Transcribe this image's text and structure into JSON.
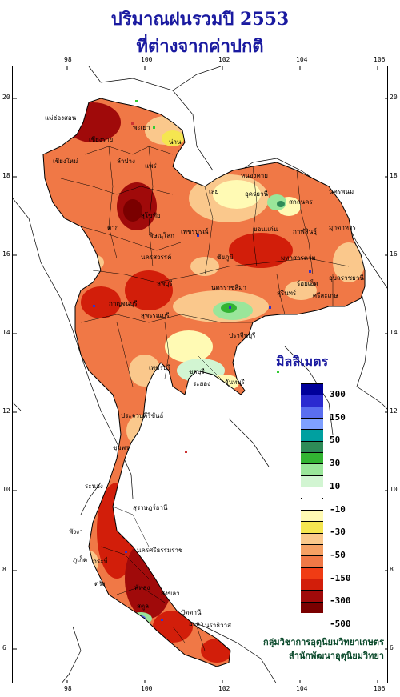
{
  "title": {
    "line1": "ปริมาณฝนรวมปี  2553",
    "line2": "ที่ต่างจากค่าปกติ"
  },
  "axes": {
    "lon_ticks": [
      "98",
      "100",
      "102",
      "104",
      "106"
    ],
    "lat_ticks": [
      "20",
      "18",
      "16",
      "14",
      "12",
      "10",
      "8",
      "6"
    ]
  },
  "legend": {
    "title": "มิลลิเมตร",
    "classes": [
      {
        "label": "300",
        "color": "#00009a"
      },
      {
        "label": "",
        "color": "#2a2ad0"
      },
      {
        "label": "150",
        "color": "#5a6ef0"
      },
      {
        "label": "",
        "color": "#7fa0ff"
      },
      {
        "label": "50",
        "color": "#00a0a0"
      },
      {
        "label": "",
        "color": "#2e8b57"
      },
      {
        "label": "30",
        "color": "#32b432"
      },
      {
        "label": "",
        "color": "#9ae69a"
      },
      {
        "label": "10",
        "color": "#d2f5d2"
      },
      {
        "label": "",
        "color": "#ffffff"
      },
      {
        "label": "-10",
        "color": "#ffffff"
      },
      {
        "label": "",
        "color": "#fffab4"
      },
      {
        "label": "-30",
        "color": "#f5e650"
      },
      {
        "label": "",
        "color": "#fac88c"
      },
      {
        "label": "-50",
        "color": "#f5a064"
      },
      {
        "label": "",
        "color": "#f07846"
      },
      {
        "label": "-150",
        "color": "#f03c14"
      },
      {
        "label": "",
        "color": "#d21e0a"
      },
      {
        "label": "-300",
        "color": "#a00a0a"
      },
      {
        "label": "",
        "color": "#7a0000"
      },
      {
        "label": "-500",
        "color": ""
      }
    ]
  },
  "provinces": [
    {
      "name": "เชียงราย"
    },
    {
      "name": "พะเยา"
    },
    {
      "name": "น่าน"
    },
    {
      "name": "ลำปาง"
    },
    {
      "name": "แพร่"
    },
    {
      "name": "เลย"
    },
    {
      "name": "อุดรธานี"
    },
    {
      "name": "หนองคาย"
    },
    {
      "name": "สกลนคร"
    },
    {
      "name": "นครพนม"
    },
    {
      "name": "มุกดาหาร"
    },
    {
      "name": "ขอนแก่น"
    },
    {
      "name": "กาฬสินธุ์"
    },
    {
      "name": "ตาก"
    },
    {
      "name": "สุโขทัย"
    },
    {
      "name": "พิษณุโลก"
    },
    {
      "name": "เพชรบูรณ์"
    },
    {
      "name": "นครสวรรค์"
    },
    {
      "name": "ชัยภูมิ"
    },
    {
      "name": "มหาสารคาม"
    },
    {
      "name": "ร้อยเอ็ด"
    },
    {
      "name": "อุบลราชธานี"
    },
    {
      "name": "ลพบุรี"
    },
    {
      "name": "นครราชสีมา"
    },
    {
      "name": "สุรินทร์"
    },
    {
      "name": "ศรีสะเกษ"
    },
    {
      "name": "กาญจนบุรี"
    },
    {
      "name": "สุพรรณบุรี"
    },
    {
      "name": "ปราจีนบุรี"
    },
    {
      "name": "ชลบุรี"
    },
    {
      "name": "ระยอง"
    },
    {
      "name": "จันทบุรี"
    },
    {
      "name": "เพชรบุรี"
    },
    {
      "name": "ประจวบคีรีขันธ์"
    },
    {
      "name": "ชุมพร"
    },
    {
      "name": "ระนอง"
    },
    {
      "name": "สุราษฎร์ธานี"
    },
    {
      "name": "นครศรีธรรมราช"
    },
    {
      "name": "กระบี่"
    },
    {
      "name": "ตรัง"
    },
    {
      "name": "พัทลุง"
    },
    {
      "name": "สงขลา"
    },
    {
      "name": "ปัตตานี"
    },
    {
      "name": "นราธิวาส"
    },
    {
      "name": "ยะลา"
    },
    {
      "name": "สตูล"
    },
    {
      "name": "พังงา"
    },
    {
      "name": "ภูเก็ต"
    },
    {
      "name": "แม่ฮ่องสอน"
    },
    {
      "name": "เชียงใหม่"
    }
  ],
  "credit": {
    "line1": "กลุ่มวิชาการอุตุนิยมวิทยาเกษตร",
    "line2": "สำนักพัฒนาอุตุนิยมวิทยา"
  }
}
